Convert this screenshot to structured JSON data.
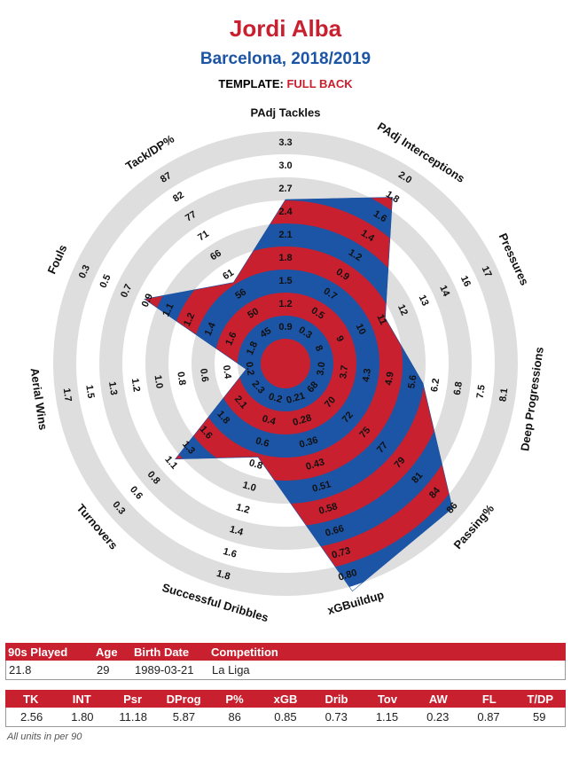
{
  "chart_data": {
    "type": "radar",
    "title": "Jordi Alba",
    "subtitle": "Barcelona, 2018/2019",
    "template_label": "TEMPLATE:",
    "template_value": "FULL BACK",
    "categories": [
      "PAdj Tackles",
      "PAdj Interceptions",
      "Pressures",
      "Deep Progressions",
      "Passing%",
      "xGBuildup",
      "Successful Dribbles",
      "Turnovers",
      "Aerial Wins",
      "Fouls",
      "Tack/DP%"
    ],
    "ticks": [
      [
        0.9,
        1.2,
        1.5,
        1.8,
        2.1,
        2.4,
        2.7,
        {
          "value": 3,
          "label": "3.0"
        },
        3.3
      ],
      [
        0.3,
        0.5,
        0.7,
        0.9,
        1.2,
        1.4,
        1.6,
        1.8,
        {
          "value": 2,
          "label": "2.0"
        }
      ],
      [
        8,
        9,
        10,
        11,
        12,
        13,
        14,
        16,
        17
      ],
      [
        {
          "value": 3,
          "label": "3.0"
        },
        3.7,
        4.3,
        4.9,
        5.6,
        6.2,
        6.8,
        7.5,
        8.1
      ],
      [
        68,
        70,
        72,
        75,
        77,
        79,
        81,
        84,
        86
      ],
      [
        0.21,
        0.28,
        0.36,
        0.43,
        0.51,
        0.58,
        0.66,
        0.73,
        {
          "value": 0.8,
          "label": "0.80"
        }
      ],
      [
        0.2,
        0.4,
        0.6,
        0.8,
        {
          "value": 1,
          "label": "1.0"
        },
        1.2,
        1.4,
        1.6,
        1.8
      ],
      [
        2.3,
        2.1,
        1.8,
        1.6,
        1.3,
        1.1,
        0.8,
        0.6,
        0.3
      ],
      [
        0.2,
        0.4,
        0.6,
        0.8,
        {
          "value": 1,
          "label": "1.0"
        },
        1.2,
        1.3,
        1.5,
        1.7
      ],
      [
        1.8,
        1.6,
        1.4,
        1.2,
        1.1,
        0.9,
        0.7,
        0.5,
        0.3
      ],
      [
        45,
        50,
        56,
        61,
        66,
        71,
        77,
        82,
        87
      ]
    ],
    "values": [
      2.56,
      1.8,
      11.18,
      5.87,
      86,
      0.85,
      0.73,
      1.15,
      0.23,
      0.87,
      59
    ],
    "colors": [
      "#c8202f",
      "#1c55a5"
    ],
    "ring_color": "#dedede"
  },
  "info_table": {
    "headers": [
      "90s Played",
      "Age",
      "Birth Date",
      "Competition"
    ],
    "rows": [
      [
        "21.8",
        "29",
        "1989-03-21",
        "La Liga"
      ]
    ]
  },
  "stats_table": {
    "headers": [
      "TK",
      "INT",
      "Psr",
      "DProg",
      "P%",
      "xGB",
      "Drib",
      "Tov",
      "AW",
      "FL",
      "T/DP"
    ],
    "rows": [
      [
        "2.56",
        "1.80",
        "11.18",
        "5.87",
        "86",
        "0.85",
        "0.73",
        "1.15",
        "0.23",
        "0.87",
        "59"
      ]
    ]
  },
  "footnote": "All units in per 90"
}
